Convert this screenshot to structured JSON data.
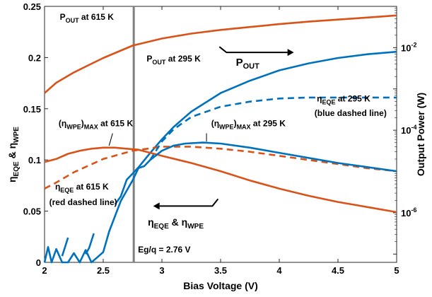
{
  "chart_data": {
    "type": "line",
    "xlabel": "Bias Voltage (V)",
    "ylabel_left": "ηEQE & ηWPE",
    "ylabel_right": "Output Power (W)",
    "xlim": [
      2,
      5
    ],
    "ylim": [
      0,
      0.25
    ],
    "y2_scale": "log",
    "y2lim_exp": [
      -7.2,
      -1.0
    ],
    "x_ticks": [
      "2",
      "2.5",
      "3",
      "3.5",
      "4",
      "4.5",
      "5"
    ],
    "y_ticks": [
      "0",
      "0.05",
      "0.1",
      "0.15",
      "0.2",
      "0.25"
    ],
    "y2_ticks": [
      {
        "base": "10",
        "exp": "-2",
        "value_exp": -2
      },
      {
        "base": "10",
        "exp": "-4",
        "value_exp": -4
      },
      {
        "base": "10",
        "exp": "-6",
        "value_exp": -6
      }
    ],
    "grid": false,
    "vline": {
      "x": 2.76,
      "label": "Eg/q = 2.76 V",
      "color": "#808080"
    },
    "colors": {
      "orange": "#d95319",
      "blue": "#0072bd"
    },
    "series": [
      {
        "id": "pout_615",
        "axis": "right",
        "style": "solid",
        "color": "#d95319",
        "x": [
          2.0,
          2.1,
          2.25,
          2.5,
          2.75,
          3.0,
          3.25,
          3.5,
          3.75,
          4.0,
          4.25,
          4.5,
          4.75,
          5.0
        ],
        "y": [
          -3.1,
          -2.85,
          -2.6,
          -2.25,
          -1.95,
          -1.78,
          -1.66,
          -1.57,
          -1.5,
          -1.43,
          -1.37,
          -1.32,
          -1.27,
          -1.22
        ]
      },
      {
        "id": "pout_295",
        "axis": "right",
        "style": "solid",
        "color": "#0072bd",
        "x": [
          2.6,
          2.65,
          2.7,
          2.75,
          2.8,
          2.9,
          3.0,
          3.1,
          3.25,
          3.5,
          3.75,
          4.0,
          4.25,
          4.5,
          4.75,
          5.0
        ],
        "y": [
          -5.8,
          -5.6,
          -5.2,
          -5.05,
          -4.9,
          -4.55,
          -4.22,
          -3.92,
          -3.55,
          -3.1,
          -2.8,
          -2.55,
          -2.38,
          -2.25,
          -2.16,
          -2.1
        ]
      },
      {
        "id": "pout_295_lowA",
        "axis": "right",
        "style": "solid",
        "color": "#0072bd",
        "x": [
          2.15,
          2.2
        ],
        "y": [
          -7.05,
          -6.6
        ]
      },
      {
        "id": "pout_295_lowB",
        "axis": "right",
        "style": "solid",
        "color": "#0072bd",
        "x": [
          2.35,
          2.38,
          2.42
        ],
        "y": [
          -7.0,
          -6.85,
          -6.5
        ]
      },
      {
        "id": "wpe_615",
        "axis": "left",
        "style": "solid",
        "color": "#d95319",
        "x": [
          2.0,
          2.1,
          2.2,
          2.3,
          2.4,
          2.5,
          2.6,
          2.7,
          2.8,
          3.0,
          3.25,
          3.5,
          3.75,
          4.0,
          4.25,
          4.5,
          4.75,
          5.0
        ],
        "y": [
          0.098,
          0.101,
          0.106,
          0.109,
          0.111,
          0.112,
          0.112,
          0.111,
          0.11,
          0.104,
          0.097,
          0.089,
          0.08,
          0.072,
          0.065,
          0.059,
          0.054,
          0.049
        ]
      },
      {
        "id": "eqe_615",
        "axis": "left",
        "style": "dashed",
        "color": "#d95319",
        "x": [
          2.0,
          2.1,
          2.25,
          2.5,
          2.75,
          3.0,
          3.25,
          3.5,
          3.75,
          4.0,
          4.25,
          4.5,
          4.75,
          5.0
        ],
        "y": [
          0.072,
          0.078,
          0.088,
          0.101,
          0.109,
          0.113,
          0.113,
          0.111,
          0.108,
          0.104,
          0.1,
          0.096,
          0.092,
          0.089
        ]
      },
      {
        "id": "wpe_295",
        "axis": "left",
        "style": "solid",
        "color": "#0072bd",
        "x": [
          2.0,
          2.03,
          2.06,
          2.1,
          2.15,
          2.2,
          2.25,
          2.3,
          2.35,
          2.4,
          2.45,
          2.5,
          2.55,
          2.6,
          2.65,
          2.7,
          2.75,
          2.8,
          2.85,
          2.9,
          3.0,
          3.1,
          3.2,
          3.35,
          3.5,
          3.75,
          4.0,
          4.25,
          4.5,
          4.75,
          5.0
        ],
        "y": [
          0.0,
          0.015,
          0.0,
          0.013,
          0.0,
          0.0,
          0.009,
          0.0,
          0.012,
          0.0,
          0.005,
          0.01,
          0.03,
          0.045,
          0.06,
          0.07,
          0.08,
          0.092,
          0.094,
          0.1,
          0.109,
          0.114,
          0.116,
          0.117,
          0.116,
          0.112,
          0.107,
          0.102,
          0.097,
          0.093,
          0.089
        ]
      },
      {
        "id": "eqe_295",
        "axis": "left",
        "style": "dashed",
        "color": "#0072bd",
        "x": [
          2.9,
          3.0,
          3.1,
          3.25,
          3.5,
          3.75,
          4.0,
          4.25,
          4.5,
          4.75,
          5.0
        ],
        "y": [
          0.1,
          0.118,
          0.13,
          0.142,
          0.152,
          0.157,
          0.16,
          0.161,
          0.161,
          0.161,
          0.161
        ]
      }
    ],
    "annotations": [
      {
        "id": "pout615",
        "pre": "P",
        "sub": "OUT",
        "post": " at 615 K",
        "x": 2.13,
        "y": 0.237
      },
      {
        "id": "pout295",
        "pre": "P",
        "sub": "OUT",
        "post": " at 295 K",
        "x": 2.87,
        "y": 0.196
      },
      {
        "id": "wpemax615",
        "pre": "(η",
        "sub": "WPE",
        "post": ")",
        "sub2": "MAX",
        "post2": " at 615 K",
        "x": 2.12,
        "y": 0.133
      },
      {
        "id": "wpemax295",
        "pre": "(η",
        "sub": "WPE",
        "post": ")",
        "sub2": "MAX",
        "post2": " at 295 K",
        "x": 3.42,
        "y": 0.133
      },
      {
        "id": "eqe615",
        "pre": "η",
        "sub": "EQE",
        "post": " at 615 K",
        "x": 2.09,
        "y": 0.071
      },
      {
        "id": "eqe295",
        "pre": "η",
        "sub": "EQE",
        "post": " at 295 K",
        "x": 4.32,
        "y": 0.157
      }
    ],
    "notes": [
      {
        "id": "red-note",
        "text": "(red dashed line)",
        "x": 2.04,
        "y": 0.056
      },
      {
        "id": "blue-note",
        "text": "(blue dashed line)",
        "x": 4.3,
        "y": 0.143
      }
    ],
    "legend_pout": {
      "pre": "P",
      "sub": "OUT"
    },
    "legend_eta": {
      "a": "η",
      "asub": "EQE",
      "mid": " & ",
      "b": "η",
      "bsub": "WPE"
    }
  }
}
